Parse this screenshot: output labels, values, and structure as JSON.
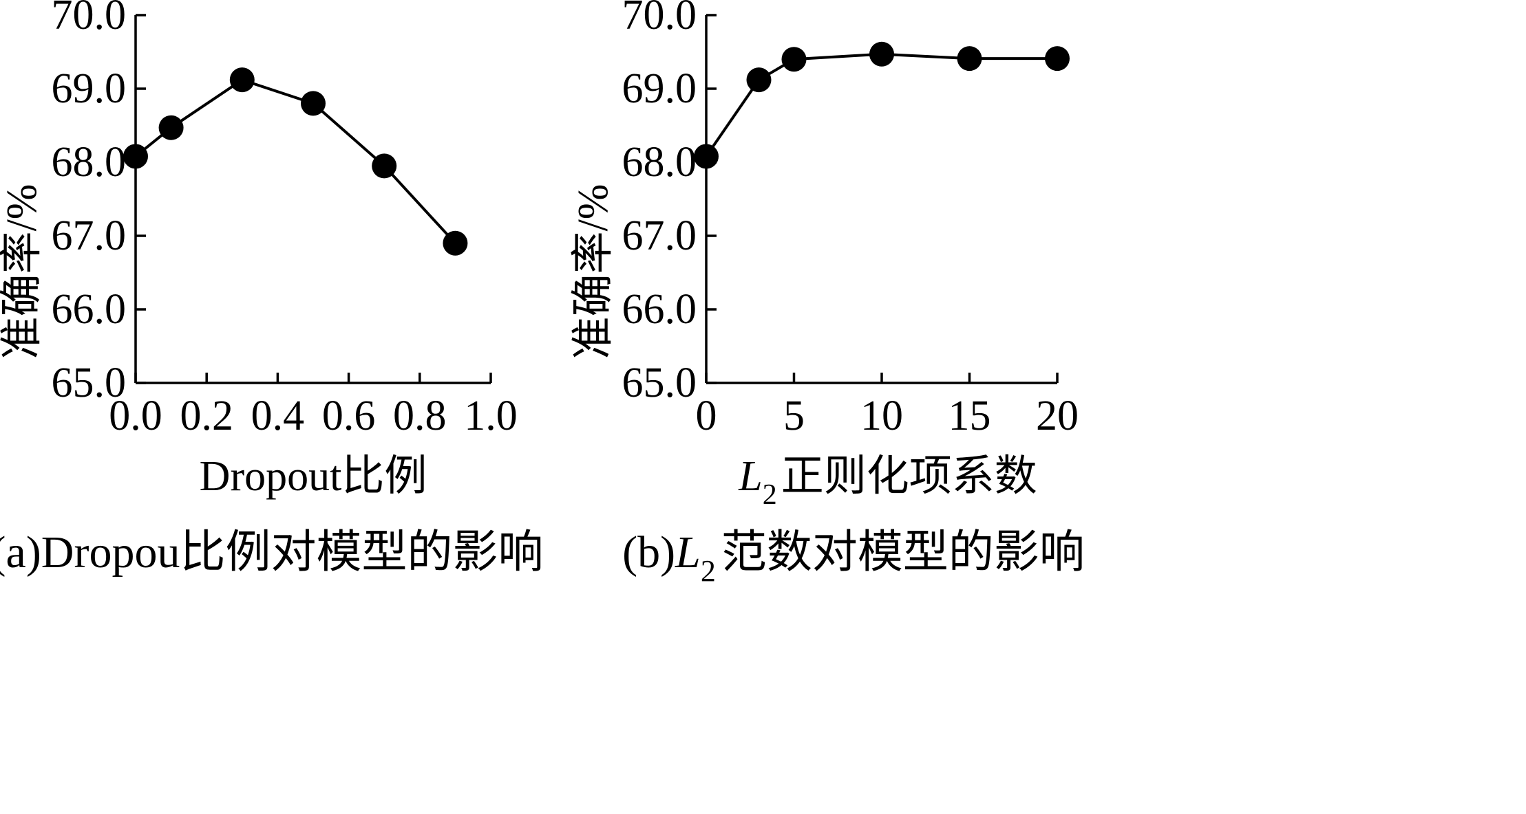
{
  "chart_data": [
    {
      "type": "line",
      "caption": "(a)Dropou比例对模型的影响",
      "xlabel": "Dropout比例",
      "ylabel": "准确率/%",
      "xlim": [
        0.0,
        1.0
      ],
      "ylim": [
        65.0,
        70.0
      ],
      "x_ticks": [
        "0.0",
        "0.2",
        "0.4",
        "0.6",
        "0.8",
        "1.0"
      ],
      "y_ticks": [
        "65.0",
        "66.0",
        "67.0",
        "68.0",
        "69.0",
        "70.0"
      ],
      "x_tick_values": [
        0.0,
        0.2,
        0.4,
        0.6,
        0.8,
        1.0
      ],
      "y_tick_values": [
        65,
        66,
        67,
        68,
        69,
        70
      ],
      "x": [
        0.0,
        0.1,
        0.3,
        0.5,
        0.7,
        0.9
      ],
      "values": [
        68.08,
        68.47,
        69.12,
        68.8,
        67.95,
        66.9
      ],
      "grid": false
    },
    {
      "type": "line",
      "caption_prefix": "(b)",
      "caption_var": "L",
      "caption_sub": "2",
      "caption_rest": "范数对模型的影响",
      "xlabel_var": "L",
      "xlabel_sub": "2",
      "xlabel_rest": "正则化项系数",
      "ylabel": "准确率/%",
      "xlim": [
        0,
        20
      ],
      "ylim": [
        65.0,
        70.0
      ],
      "x_ticks": [
        "0",
        "5",
        "10",
        "15",
        "20"
      ],
      "y_ticks": [
        "65.0",
        "66.0",
        "67.0",
        "68.0",
        "69.0",
        "70.0"
      ],
      "x_tick_values": [
        0,
        5,
        10,
        15,
        20
      ],
      "y_tick_values": [
        65,
        66,
        67,
        68,
        69,
        70
      ],
      "x": [
        0,
        3,
        5,
        10,
        15,
        20
      ],
      "values": [
        68.08,
        69.12,
        69.4,
        69.47,
        69.41,
        69.41
      ],
      "grid": false
    }
  ]
}
